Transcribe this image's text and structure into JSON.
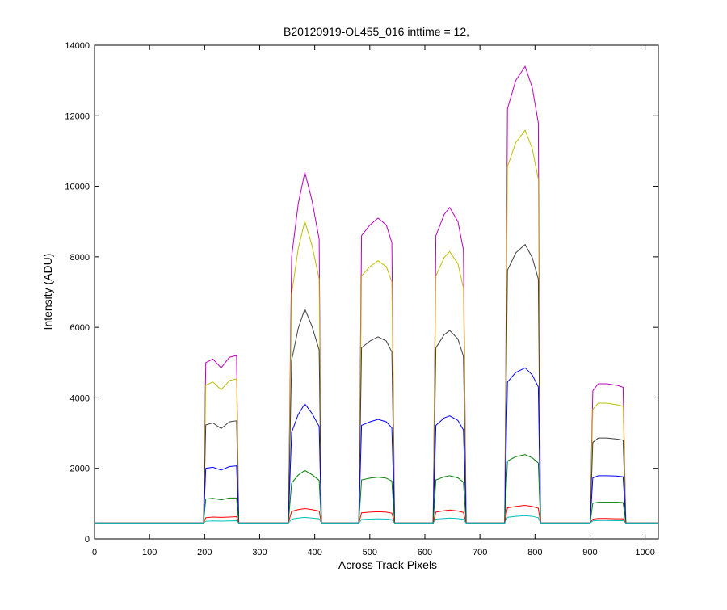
{
  "chart_data": {
    "type": "line",
    "title": "B20120919-OL455_016 inttime = 12,",
    "xlabel": "Across Track Pixels",
    "ylabel": "Intensity (ADU)",
    "xlim": [
      0,
      1024
    ],
    "ylim": [
      0,
      14000
    ],
    "xticks": [
      0,
      100,
      200,
      300,
      400,
      500,
      600,
      700,
      800,
      900,
      1000
    ],
    "yticks": [
      0,
      2000,
      4000,
      6000,
      8000,
      10000,
      12000,
      14000
    ],
    "x": [
      0,
      198,
      202,
      215,
      230,
      245,
      258,
      262,
      352,
      358,
      370,
      382,
      395,
      408,
      412,
      480,
      485,
      500,
      515,
      530,
      540,
      545,
      615,
      620,
      635,
      645,
      660,
      670,
      675,
      745,
      750,
      765,
      782,
      795,
      806,
      810,
      900,
      905,
      915,
      930,
      950,
      960,
      965,
      1024
    ],
    "series": [
      {
        "color": "#bf00bf",
        "values": [
          450,
          450,
          5000,
          5100,
          4850,
          5150,
          5200,
          450,
          450,
          8000,
          9500,
          10400,
          9600,
          8500,
          450,
          450,
          8600,
          8900,
          9100,
          8900,
          8400,
          450,
          450,
          8600,
          9200,
          9400,
          9000,
          8200,
          450,
          450,
          12200,
          13000,
          13400,
          12800,
          11800,
          450,
          450,
          4200,
          4400,
          4400,
          4350,
          4300,
          450,
          450
        ]
      },
      {
        "color": "#bfbf00",
        "values": [
          450,
          450,
          4360,
          4450,
          4230,
          4490,
          4540,
          450,
          450,
          6940,
          8230,
          9010,
          8320,
          7370,
          450,
          450,
          7460,
          7720,
          7890,
          7720,
          7290,
          450,
          450,
          7460,
          7980,
          8150,
          7800,
          7120,
          450,
          450,
          10560,
          11240,
          11590,
          11070,
          10210,
          450,
          450,
          3680,
          3850,
          3850,
          3800,
          3760,
          450,
          450
        ]
      },
      {
        "color": "#404040",
        "values": [
          450,
          450,
          3230,
          3290,
          3130,
          3320,
          3350,
          450,
          450,
          5060,
          5970,
          6520,
          6030,
          5360,
          450,
          450,
          5420,
          5610,
          5730,
          5610,
          5300,
          450,
          450,
          5420,
          5790,
          5910,
          5670,
          5180,
          450,
          450,
          7620,
          8110,
          8350,
          7980,
          7370,
          450,
          450,
          2740,
          2860,
          2860,
          2830,
          2800,
          450,
          450
        ]
      },
      {
        "color": "#0000ff",
        "values": [
          450,
          450,
          2000,
          2030,
          1950,
          2050,
          2070,
          450,
          450,
          3020,
          3530,
          3830,
          3560,
          3190,
          450,
          450,
          3220,
          3320,
          3390,
          3320,
          3150,
          450,
          450,
          3220,
          3430,
          3490,
          3360,
          3090,
          450,
          450,
          4450,
          4720,
          4850,
          4650,
          4310,
          450,
          450,
          1730,
          1790,
          1790,
          1780,
          1760,
          450,
          450
        ]
      },
      {
        "color": "#008000",
        "values": [
          450,
          450,
          1130,
          1150,
          1110,
          1160,
          1160,
          450,
          450,
          1580,
          1810,
          1940,
          1820,
          1660,
          450,
          450,
          1670,
          1720,
          1750,
          1720,
          1640,
          450,
          450,
          1670,
          1760,
          1790,
          1730,
          1610,
          450,
          450,
          2210,
          2330,
          2390,
          2300,
          2150,
          450,
          450,
          1010,
          1040,
          1040,
          1040,
          1030,
          450,
          450
        ]
      },
      {
        "color": "#ff0000",
        "values": [
          450,
          450,
          600,
          620,
          610,
          620,
          630,
          450,
          450,
          780,
          830,
          860,
          830,
          790,
          450,
          450,
          740,
          760,
          770,
          760,
          730,
          450,
          450,
          760,
          800,
          820,
          790,
          750,
          450,
          450,
          880,
          920,
          950,
          920,
          870,
          450,
          450,
          560,
          580,
          580,
          570,
          570,
          450,
          450
        ]
      },
      {
        "color": "#00bfbf",
        "values": [
          450,
          450,
          500,
          510,
          505,
          510,
          515,
          450,
          450,
          560,
          590,
          610,
          590,
          570,
          450,
          450,
          550,
          560,
          570,
          560,
          545,
          450,
          450,
          560,
          580,
          590,
          575,
          555,
          450,
          450,
          610,
          640,
          660,
          640,
          600,
          450,
          450,
          510,
          520,
          520,
          515,
          515,
          450,
          450
        ]
      }
    ]
  }
}
